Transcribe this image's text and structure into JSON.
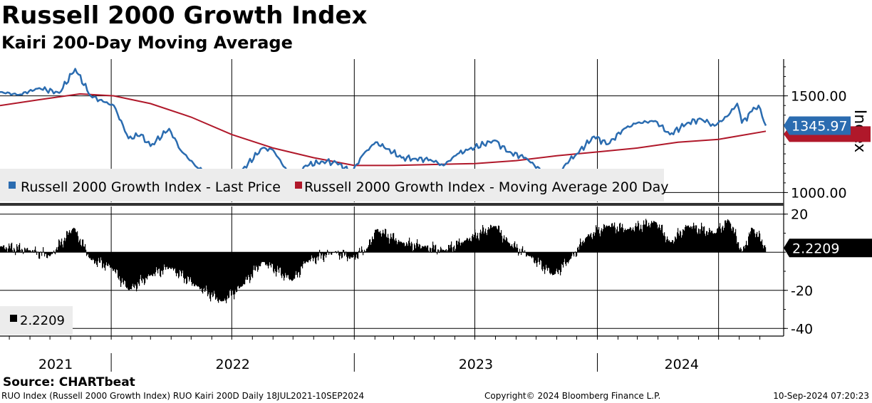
{
  "header": {
    "title": "Russell 2000 Growth Index",
    "subtitle": "Kairi 200-Day Moving Average"
  },
  "footer": {
    "source": "Source: CHARTbeat",
    "left": "RUO Index (Russell 2000 Growth Index) RUO Kairi 200D  Daily 18JUL2021-10SEP2024",
    "middle": "Copyright© 2024 Bloomberg Finance L.P.",
    "right": "10-Sep-2024 07:20:23"
  },
  "chart_data": [
    {
      "type": "line",
      "ylabel": "Index",
      "ylim": [
        950,
        1690
      ],
      "y_ticks": [
        "1500.00",
        "1000.00"
      ],
      "y_tick_values": [
        1500,
        1000
      ],
      "x_range": [
        "2021-07-18",
        "2024-09-10"
      ],
      "x_ticks": [
        "2021",
        "2022",
        "2023",
        "2024"
      ],
      "grid": true,
      "legend": "bottom-left",
      "last_value_label": "1345.97",
      "colors": {
        "price": "#2b6cb0",
        "ma": "#b0182a"
      },
      "series": [
        {
          "name": "Russell 2000 Growth Index - Last Price",
          "x": [
            "2021-07-18",
            "2021-08-15",
            "2021-09-15",
            "2021-10-15",
            "2021-11-08",
            "2021-12-01",
            "2021-12-20",
            "2022-01-05",
            "2022-01-27",
            "2022-02-15",
            "2022-03-01",
            "2022-03-29",
            "2022-04-15",
            "2022-05-10",
            "2022-05-31",
            "2022-06-16",
            "2022-07-15",
            "2022-08-16",
            "2022-09-01",
            "2022-09-30",
            "2022-10-20",
            "2022-11-15",
            "2022-12-05",
            "2022-12-28",
            "2023-01-15",
            "2023-02-02",
            "2023-02-20",
            "2023-03-13",
            "2023-04-01",
            "2023-04-25",
            "2023-05-15",
            "2023-06-05",
            "2023-06-20",
            "2023-07-31",
            "2023-08-20",
            "2023-09-15",
            "2023-10-27",
            "2023-11-15",
            "2023-12-01",
            "2023-12-27",
            "2024-01-17",
            "2024-02-10",
            "2024-03-01",
            "2024-03-28",
            "2024-04-19",
            "2024-05-15",
            "2024-06-05",
            "2024-06-25",
            "2024-07-16",
            "2024-07-29",
            "2024-08-05",
            "2024-08-20",
            "2024-08-30",
            "2024-09-10"
          ],
          "y": [
            1520,
            1505,
            1540,
            1515,
            1640,
            1500,
            1470,
            1450,
            1280,
            1300,
            1240,
            1330,
            1220,
            1130,
            1090,
            1040,
            1110,
            1230,
            1220,
            1070,
            1140,
            1160,
            1155,
            1105,
            1200,
            1260,
            1225,
            1180,
            1175,
            1170,
            1140,
            1200,
            1220,
            1270,
            1210,
            1180,
            1060,
            1150,
            1200,
            1290,
            1250,
            1330,
            1360,
            1370,
            1300,
            1360,
            1380,
            1345,
            1400,
            1460,
            1360,
            1420,
            1450,
            1346
          ]
        },
        {
          "name": "Russell 2000 Growth Index - Moving Average 200 Day",
          "x": [
            "2021-07-18",
            "2021-09-15",
            "2021-11-15",
            "2022-01-05",
            "2022-03-01",
            "2022-05-01",
            "2022-07-01",
            "2022-09-01",
            "2022-11-01",
            "2023-01-01",
            "2023-03-01",
            "2023-05-01",
            "2023-07-01",
            "2023-09-01",
            "2023-11-01",
            "2024-01-01",
            "2024-03-01",
            "2024-05-01",
            "2024-07-01",
            "2024-09-10"
          ],
          "y": [
            1450,
            1480,
            1510,
            1500,
            1460,
            1390,
            1300,
            1230,
            1180,
            1140,
            1140,
            1145,
            1150,
            1165,
            1190,
            1210,
            1230,
            1260,
            1275,
            1317
          ]
        }
      ]
    },
    {
      "type": "bar",
      "ylim": [
        -44,
        24
      ],
      "y_ticks": [
        "20",
        "-20",
        "-40"
      ],
      "y_tick_values": [
        20,
        -20,
        -40
      ],
      "x_range": [
        "2021-07-18",
        "2024-09-10"
      ],
      "grid": true,
      "legend": "bottom-left",
      "last_value_label": "2.2209",
      "series": [
        {
          "name": "2.2209",
          "x": [
            "2021-07-18",
            "2021-09-01",
            "2021-10-01",
            "2021-11-05",
            "2021-12-01",
            "2022-01-01",
            "2022-01-27",
            "2022-03-01",
            "2022-03-29",
            "2022-05-10",
            "2022-06-16",
            "2022-07-15",
            "2022-08-16",
            "2022-09-30",
            "2022-10-20",
            "2022-12-01",
            "2022-12-28",
            "2023-01-20",
            "2023-02-02",
            "2023-03-13",
            "2023-04-15",
            "2023-05-15",
            "2023-06-15",
            "2023-07-31",
            "2023-08-20",
            "2023-09-20",
            "2023-10-27",
            "2023-11-20",
            "2023-12-15",
            "2024-01-17",
            "2024-02-15",
            "2024-03-28",
            "2024-04-19",
            "2024-05-15",
            "2024-06-25",
            "2024-07-16",
            "2024-08-05",
            "2024-08-20",
            "2024-09-10"
          ],
          "values": [
            3,
            1,
            -2,
            13,
            -4,
            -8,
            -20,
            -12,
            -8,
            -18,
            -26,
            -18,
            -5,
            -15,
            -5,
            0,
            -3,
            2,
            12,
            5,
            3,
            1,
            6,
            14,
            5,
            -2,
            -12,
            -4,
            8,
            14,
            12,
            16,
            5,
            14,
            10,
            17,
            0,
            13,
            2.2209
          ]
        }
      ]
    }
  ]
}
